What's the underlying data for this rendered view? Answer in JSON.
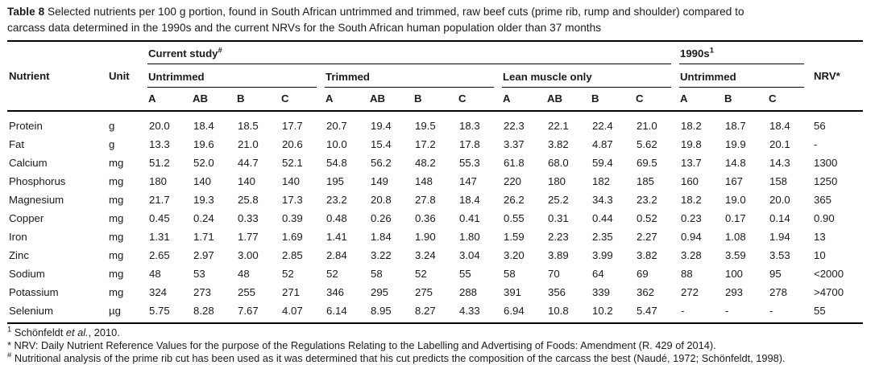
{
  "page": {
    "title_label": "Table 8",
    "title_line1": "Selected nutrients per 100 g portion, found in South African untrimmed and trimmed, raw beef cuts (prime rib, rump and shoulder) compared to",
    "title_line2": "carcass data determined in the 1990s and the current NRVs for the South African human population older than 37 months"
  },
  "header": {
    "nutrient": "Nutrient",
    "unit": "Unit",
    "current_study": {
      "label": "Current study",
      "sup": "#"
    },
    "nineties": {
      "label": "1990s",
      "sup": "1"
    },
    "nrv": "NRV*",
    "groups": [
      {
        "label": "Untrimmed",
        "cols": [
          "A",
          "AB",
          "B",
          "C"
        ]
      },
      {
        "label": "Trimmed",
        "cols": [
          "A",
          "AB",
          "B",
          "C"
        ]
      },
      {
        "label": "Lean muscle only",
        "cols": [
          "A",
          "AB",
          "B",
          "C"
        ]
      },
      {
        "label": "Untrimmed",
        "cols": [
          "A",
          "B",
          "C"
        ]
      }
    ]
  },
  "rows": [
    {
      "nutrient": "Protein",
      "unit": "g",
      "values": [
        "20.0",
        "18.4",
        "18.5",
        "17.7",
        "20.7",
        "19.4",
        "19.5",
        "18.3",
        "22.3",
        "22.1",
        "22.4",
        "21.0",
        "18.2",
        "18.7",
        "18.4",
        "56"
      ]
    },
    {
      "nutrient": "Fat",
      "unit": "g",
      "values": [
        "13.3",
        "19.6",
        "21.0",
        "20.6",
        "10.0",
        "15.4",
        "17.2",
        "17.8",
        "3.37",
        "3.82",
        "4.87",
        "5.62",
        "19.8",
        "19.9",
        "20.1",
        "-"
      ]
    },
    {
      "nutrient": "Calcium",
      "unit": "mg",
      "values": [
        "51.2",
        "52.0",
        "44.7",
        "52.1",
        "54.8",
        "56.2",
        "48.2",
        "55.3",
        "61.8",
        "68.0",
        "59.4",
        "69.5",
        "13.7",
        "14.8",
        "14.3",
        "1300"
      ]
    },
    {
      "nutrient": "Phosphorus",
      "unit": "mg",
      "values": [
        "180",
        "140",
        "140",
        "140",
        "195",
        "149",
        "148",
        "147",
        "220",
        "180",
        "182",
        "185",
        "160",
        "167",
        "158",
        "1250"
      ]
    },
    {
      "nutrient": "Magnesium",
      "unit": "mg",
      "values": [
        "21.7",
        "19.3",
        "25.8",
        "17.3",
        "23.2",
        "20.8",
        "27.8",
        "18.4",
        "26.2",
        "25.2",
        "34.3",
        "23.2",
        "18.2",
        "19.0",
        "20.0",
        "365"
      ]
    },
    {
      "nutrient": "Copper",
      "unit": "mg",
      "values": [
        "0.45",
        "0.24",
        "0.33",
        "0.39",
        "0.48",
        "0.26",
        "0.36",
        "0.41",
        "0.55",
        "0.31",
        "0.44",
        "0.52",
        "0.23",
        "0.17",
        "0.14",
        "0.90"
      ]
    },
    {
      "nutrient": "Iron",
      "unit": "mg",
      "values": [
        "1.31",
        "1.71",
        "1.77",
        "1.69",
        "1.41",
        "1.84",
        "1.90",
        "1.80",
        "1.59",
        "2.23",
        "2.35",
        "2.27",
        "0.94",
        "1.08",
        "1.94",
        "13"
      ]
    },
    {
      "nutrient": "Zinc",
      "unit": "mg",
      "values": [
        "2.65",
        "2.97",
        "3.00",
        "2.85",
        "2.84",
        "3.22",
        "3.24",
        "3.04",
        "3.20",
        "3.89",
        "3.99",
        "3.82",
        "3.28",
        "3.59",
        "3.53",
        "10"
      ]
    },
    {
      "nutrient": "Sodium",
      "unit": "mg",
      "values": [
        "48",
        "53",
        "48",
        "52",
        "52",
        "58",
        "52",
        "55",
        "58",
        "70",
        "64",
        "69",
        "88",
        "100",
        "95",
        "<2000"
      ]
    },
    {
      "nutrient": "Potassium",
      "unit": "mg",
      "values": [
        "324",
        "273",
        "255",
        "271",
        "346",
        "295",
        "275",
        "288",
        "391",
        "356",
        "339",
        "362",
        "272",
        "293",
        "278",
        ">4700"
      ]
    },
    {
      "nutrient": "Selenium",
      "unit": "µg",
      "values": [
        "5.75",
        "8.28",
        "7.67",
        "4.07",
        "6.14",
        "8.95",
        "8.27",
        "4.33",
        "6.94",
        "10.8",
        "10.2",
        "5.47",
        "-",
        "-",
        "-",
        "55"
      ]
    }
  ],
  "footnotes": [
    {
      "marker": "1",
      "pre": "Schönfeldt ",
      "italic": "et al.",
      "post": ", 2010."
    },
    {
      "marker": "*",
      "text": "NRV: Daily Nutrient Reference Values for the purpose of the Regulations Relating to the Labelling and Advertising of Foods: Amendment (R. 429 of 2014)."
    },
    {
      "marker": "#",
      "text": "Nutritional analysis of the prime rib cut has been used as it was determined that his cut predicts the composition of the carcass the best (Naudé, 1972; Schönfeldt, 1998)."
    }
  ]
}
